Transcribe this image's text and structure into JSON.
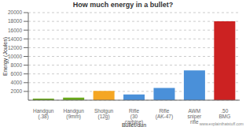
{
  "chart_data": {
    "type": "bar",
    "title": "How much energy in a bullet?",
    "xlabel": "Bullet/gun",
    "ylabel": "Energy (Joules)",
    "categories": [
      "Handgun (.38)",
      "Handgun (9mm)",
      "Shotgun (12g)",
      "Rifle (30 carbine)",
      "Rifle (AK-47)",
      "AWM sniper rifle",
      ".50 BMG"
    ],
    "values": [
      350,
      600,
      2100,
      1300,
      2800,
      6800,
      18000
    ],
    "colors": [
      "#6aaa1a",
      "#6aaa1a",
      "#f5a623",
      "#4a90d9",
      "#4a90d9",
      "#4a90d9",
      "#cc2222"
    ],
    "ylim": [
      0,
      20000
    ],
    "yticks": [
      2000,
      4000,
      6000,
      8000,
      10000,
      12000,
      14000,
      16000,
      18000,
      20000
    ],
    "grid": true,
    "annotations": [
      "www.explainthatstuff.com"
    ]
  }
}
